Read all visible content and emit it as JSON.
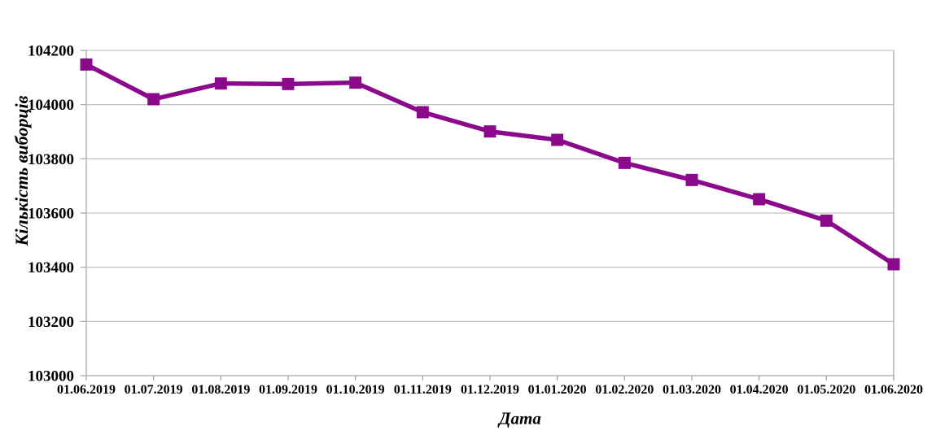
{
  "chart_data": {
    "type": "line",
    "title": "",
    "xlabel": "Дата",
    "ylabel": "Кількість виборців",
    "categories": [
      "01.06.2019",
      "01.07.2019",
      "01.08.2019",
      "01.09.2019",
      "01.10.2019",
      "01.11.2019",
      "01.12.2019",
      "01.01.2020",
      "01.02.2020",
      "01.03.2020",
      "01.04.2020",
      "01.05.2020",
      "01.06.2020"
    ],
    "series": [
      {
        "name": "Кількість виборців",
        "marker": "square",
        "color": "#8B098B",
        "values": [
          104148,
          104020,
          104078,
          104076,
          104081,
          103972,
          103901,
          103870,
          103785,
          103722,
          103651,
          103572,
          103411
        ]
      }
    ],
    "ylim": [
      103000,
      104200
    ],
    "yticks": [
      103000,
      103200,
      103400,
      103600,
      103800,
      104000,
      104200
    ],
    "grid": "horizontal",
    "legend_position": "none",
    "colors": {
      "gridline": "#C4C4C4",
      "axis": "#A9A9A9",
      "text": "#000000",
      "background": "#FFFFFF"
    }
  }
}
